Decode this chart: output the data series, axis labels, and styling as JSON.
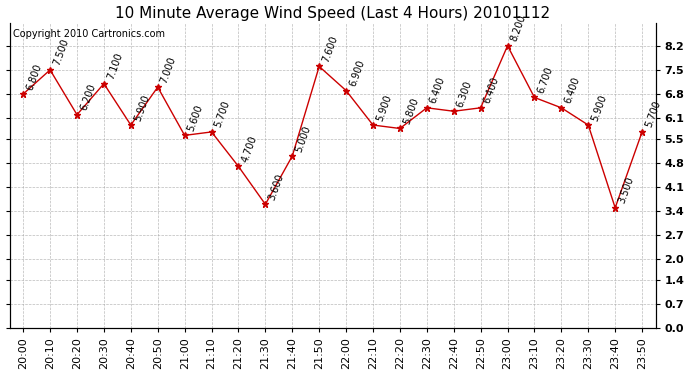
{
  "title": "10 Minute Average Wind Speed (Last 4 Hours) 20101112",
  "copyright": "Copyright 2010 Cartronics.com",
  "x_labels": [
    "20:00",
    "20:10",
    "20:20",
    "20:30",
    "20:40",
    "20:50",
    "21:00",
    "21:10",
    "21:20",
    "21:30",
    "21:40",
    "21:50",
    "22:00",
    "22:10",
    "22:20",
    "22:30",
    "22:40",
    "22:50",
    "23:00",
    "23:10",
    "23:20",
    "23:30",
    "23:40",
    "23:50"
  ],
  "y_values": [
    6.8,
    7.5,
    6.2,
    7.1,
    5.9,
    7.0,
    5.6,
    5.7,
    4.7,
    3.6,
    5.0,
    7.6,
    6.9,
    5.9,
    5.8,
    6.4,
    6.3,
    6.4,
    8.2,
    6.7,
    6.4,
    5.9,
    3.5,
    5.7
  ],
  "value_labels": [
    "6.800",
    "7.500",
    "6.200",
    "7.100",
    "5.900",
    "7.000",
    "5.600",
    "5.700",
    "4.700",
    "3.600",
    "5.000",
    "7.600",
    "6.900",
    "5.900",
    "5.800",
    "6.400",
    "6.300",
    "6.400",
    "8.200",
    "6.700",
    "6.400",
    "5.900",
    "3.500",
    "5.700"
  ],
  "line_color": "#cc0000",
  "marker_color": "#cc0000",
  "bg_color": "#ffffff",
  "grid_color": "#aaaaaa",
  "ylim": [
    0.0,
    8.857
  ],
  "yticks": [
    0.0,
    0.7,
    1.4,
    2.0,
    2.7,
    3.4,
    4.1,
    4.8,
    5.5,
    6.1,
    6.8,
    7.5,
    8.2
  ],
  "ytick_labels": [
    "0.0",
    "0.7",
    "1.4",
    "2.0",
    "2.7",
    "3.4",
    "4.1",
    "4.8",
    "5.5",
    "6.1",
    "6.8",
    "7.5",
    "8.2"
  ],
  "title_fontsize": 11,
  "label_fontsize": 7,
  "copyright_fontsize": 7,
  "tick_fontsize": 8
}
